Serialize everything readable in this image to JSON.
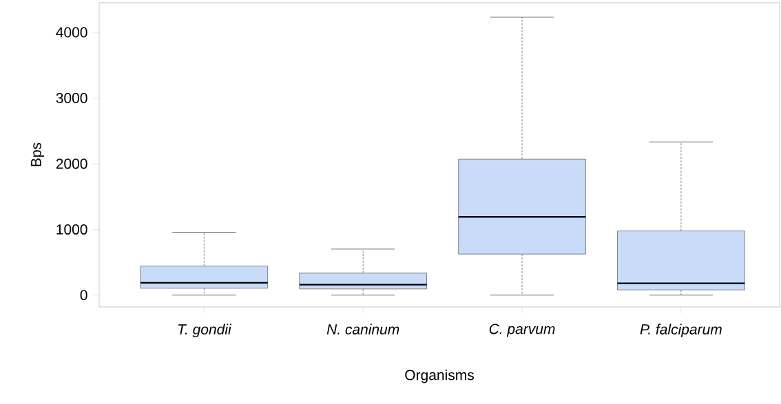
{
  "chart_data": {
    "type": "box",
    "xlabel": "Organisms",
    "ylabel": "Bps",
    "categories": [
      "T. gondii",
      "N. caninum",
      "C. parvum",
      "P. falciparum"
    ],
    "color": "#c8dcfa",
    "boxes": [
      {
        "low": 0,
        "q1": 105,
        "median": 188,
        "q3": 443,
        "high": 956
      },
      {
        "low": 0,
        "q1": 94,
        "median": 160,
        "q3": 335,
        "high": 701
      },
      {
        "low": 0,
        "q1": 625,
        "median": 1190,
        "q3": 2070,
        "high": 4230
      },
      {
        "low": 0,
        "q1": 80,
        "median": 181,
        "q3": 977,
        "high": 2332
      }
    ],
    "ylim": [
      -180,
      4450
    ],
    "yticks": [
      0,
      1000,
      2000,
      3000,
      4000
    ]
  }
}
